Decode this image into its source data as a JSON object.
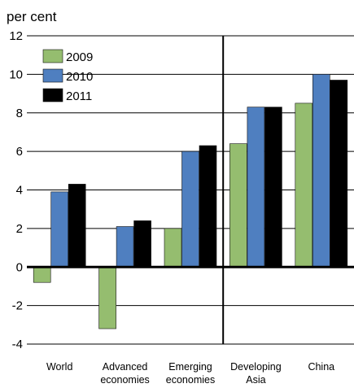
{
  "chart_data": {
    "type": "bar",
    "unit_label": "per cent",
    "categories": [
      "World",
      "Advanced economies",
      "Emerging economies",
      "Developing Asia",
      "China"
    ],
    "series": [
      {
        "name": "2009",
        "color": "#95bd6f",
        "values": [
          -0.8,
          -3.2,
          2.0,
          6.4,
          8.5
        ]
      },
      {
        "name": "2010",
        "color": "#4f7fc0",
        "values": [
          3.9,
          2.1,
          6.0,
          8.3,
          10.0
        ]
      },
      {
        "name": "2011",
        "color": "#000000",
        "values": [
          4.3,
          2.4,
          6.3,
          8.3,
          9.7
        ]
      }
    ],
    "ylim": [
      -4,
      12
    ],
    "yticks": [
      -4,
      -2,
      0,
      2,
      4,
      6,
      8,
      10,
      12
    ],
    "grid": true,
    "legend_position": "top-left",
    "divider_after_category": "Emerging economies"
  }
}
